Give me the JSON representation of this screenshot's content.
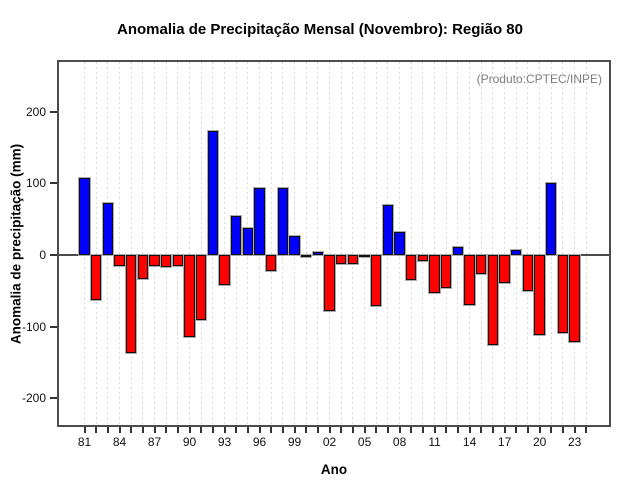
{
  "chart_data": {
    "type": "bar",
    "title": "Anomalia de Precipitação Mensal (Novembro): Região 80",
    "annotation": "(Produto:CPTEC/INPE)",
    "xlabel": "Ano",
    "ylabel": "Anomalia de precipitação (mm)",
    "years": [
      1981,
      1982,
      1983,
      1984,
      1985,
      1986,
      1987,
      1988,
      1989,
      1990,
      1991,
      1992,
      1993,
      1994,
      1995,
      1996,
      1997,
      1998,
      1999,
      2000,
      2001,
      2002,
      2003,
      2004,
      2005,
      2006,
      2007,
      2008,
      2009,
      2010,
      2011,
      2012,
      2013,
      2014,
      2015,
      2016,
      2017,
      2018,
      2019,
      2020,
      2021,
      2022,
      2023
    ],
    "values": [
      107,
      -63,
      73,
      -16,
      -136,
      -33,
      -15,
      -17,
      -15,
      -114,
      -90,
      173,
      -42,
      55,
      37,
      94,
      -22,
      94,
      26,
      -2,
      4,
      -78,
      -13,
      -12,
      -1,
      -71,
      70,
      32,
      -35,
      -8,
      -53,
      -46,
      11,
      -70,
      -27,
      -126,
      -39,
      7,
      -50,
      -111,
      100,
      -109,
      -121
    ],
    "y_ticks": [
      200,
      100,
      0,
      -100,
      -200
    ],
    "y_tick_labels": [
      "200",
      "100",
      "0",
      "-100",
      "-200"
    ],
    "x_tick_labels": [
      "81",
      "84",
      "87",
      "90",
      "93",
      "96",
      "99",
      "02",
      "05",
      "08",
      "11",
      "14",
      "17",
      "20",
      "23"
    ],
    "x_tick_step": 3,
    "ylim": [
      -237,
      269
    ],
    "grid": "vertical-dashed",
    "positive_color": "#0000ff",
    "negative_color": "#ff0000",
    "grid_color": "#d9d9d9",
    "frame_color": "#4d4d4d",
    "annotation_color": "#7d7d7d"
  }
}
